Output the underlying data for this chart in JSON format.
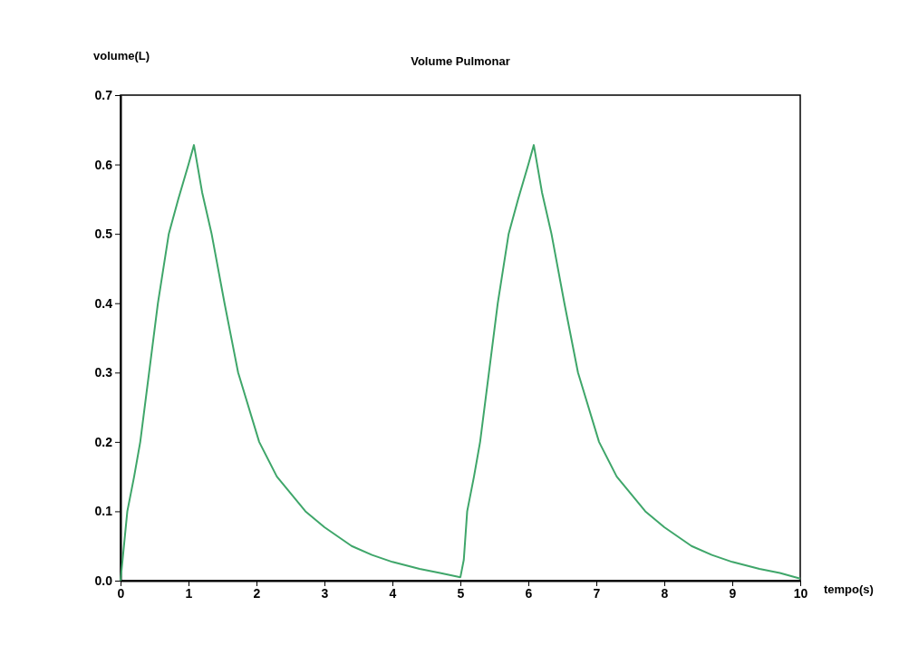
{
  "chart_data": {
    "type": "line",
    "title": "Volume Pulmonar",
    "xlabel": "tempo(s)",
    "ylabel": "volume(L)",
    "xlim": [
      0,
      10
    ],
    "ylim": [
      0,
      0.7
    ],
    "xticks": [
      0,
      1,
      2,
      3,
      4,
      5,
      6,
      7,
      8,
      9,
      10
    ],
    "yticks": [
      {
        "value": 0,
        "label": "0.0"
      },
      0.1,
      0.2,
      0.3,
      0.4,
      0.5,
      0.6,
      0.7
    ],
    "grid": false,
    "marker": "none",
    "line_style": "solid",
    "series": [
      {
        "color": "#3fa66a",
        "x": [
          0,
          0.05,
          0.1,
          0.2,
          0.29,
          0.42,
          0.55,
          0.71,
          0.85,
          1.0,
          1.08,
          1.2,
          1.34,
          1.53,
          1.73,
          2.04,
          2.3,
          2.72,
          3.0,
          3.4,
          3.7,
          4.0,
          4.4,
          4.7,
          5.0,
          5.05,
          5.1,
          5.2,
          5.29,
          5.42,
          5.55,
          5.71,
          5.85,
          6.0,
          6.08,
          6.2,
          6.34,
          6.53,
          6.73,
          7.04,
          7.3,
          7.72,
          8.0,
          8.4,
          8.7,
          9.0,
          9.4,
          9.7,
          10.0
        ],
        "values": [
          0,
          0.05,
          0.1,
          0.15,
          0.2,
          0.3,
          0.4,
          0.5,
          0.55,
          0.6,
          0.628,
          0.56,
          0.5,
          0.4,
          0.3,
          0.2,
          0.15,
          0.1,
          0.077,
          0.05,
          0.037,
          0.027,
          0.017,
          0.011,
          0.005,
          0.03,
          0.1,
          0.15,
          0.2,
          0.3,
          0.4,
          0.5,
          0.55,
          0.6,
          0.628,
          0.56,
          0.5,
          0.4,
          0.3,
          0.2,
          0.15,
          0.1,
          0.077,
          0.05,
          0.037,
          0.027,
          0.017,
          0.011,
          0.003
        ]
      }
    ]
  }
}
